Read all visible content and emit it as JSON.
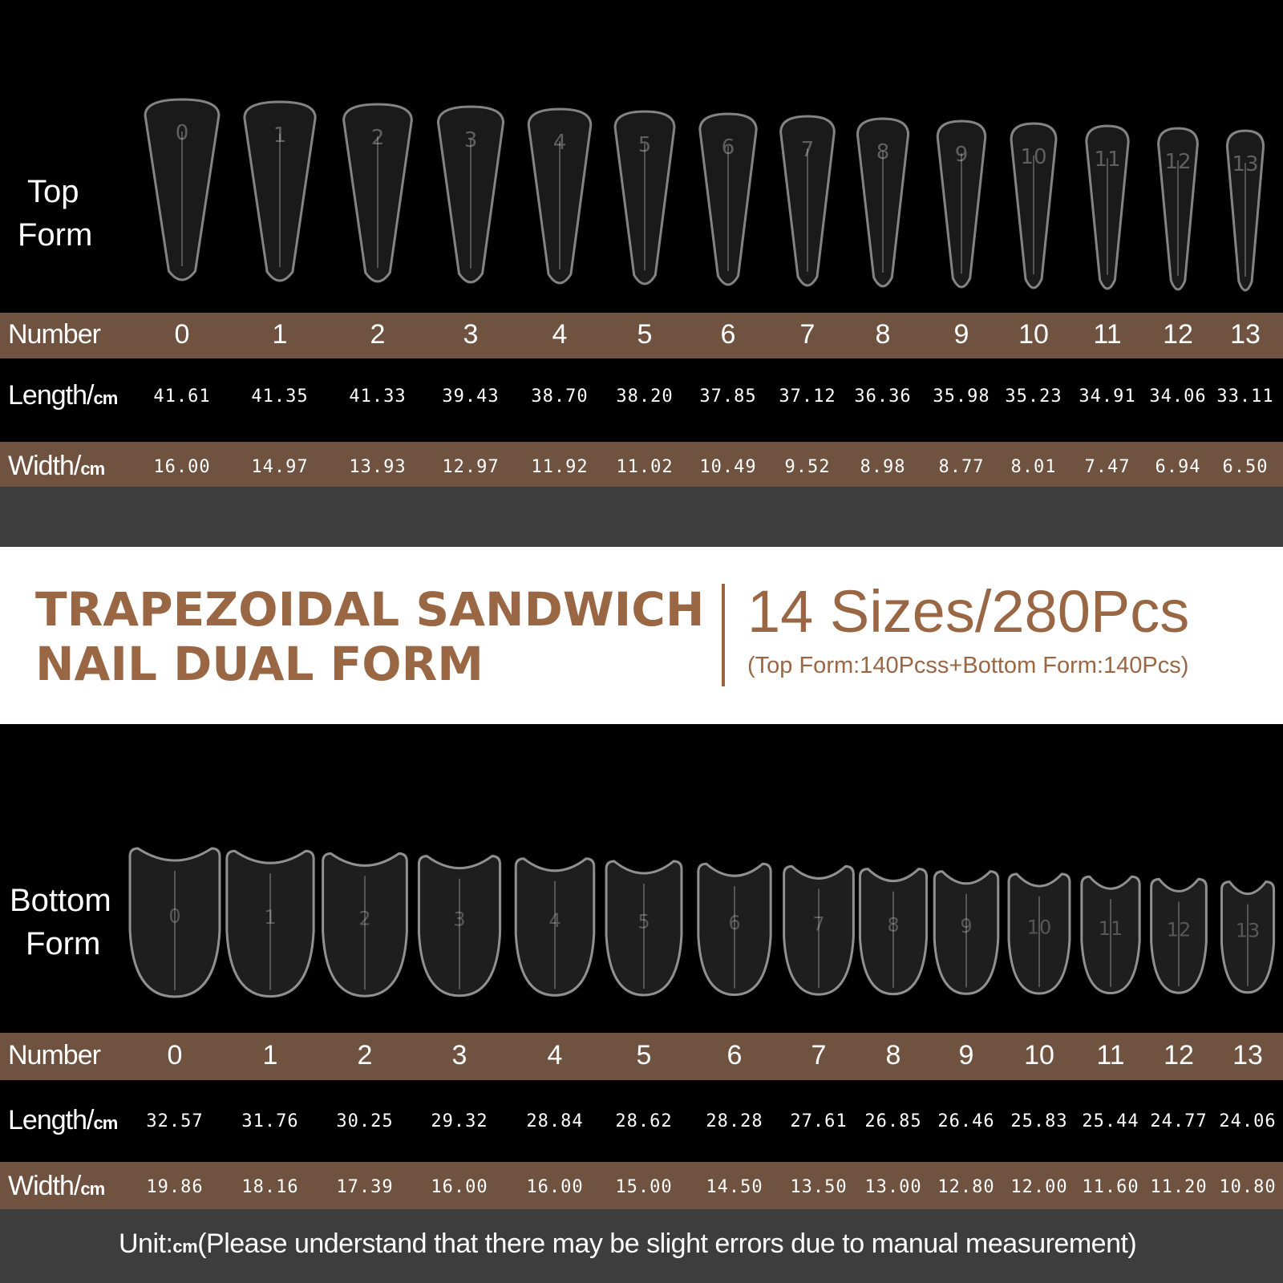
{
  "top_form": {
    "label_line1": "Top",
    "label_line2": "Form",
    "number_label": "Number",
    "length_label": "Length/",
    "length_unit": "cm",
    "width_label": "Width/",
    "width_unit": "cm",
    "numbers": [
      0,
      1,
      2,
      3,
      4,
      5,
      6,
      7,
      8,
      9,
      10,
      11,
      12,
      13
    ],
    "lengths": [
      "41.61",
      "41.35",
      "41.33",
      "39.43",
      "38.70",
      "38.20",
      "37.85",
      "37.12",
      "36.36",
      "35.98",
      "35.23",
      "34.91",
      "34.06",
      "33.11"
    ],
    "widths": [
      "16.00",
      "14.97",
      "13.93",
      "12.97",
      "11.92",
      "11.02",
      "10.49",
      "9.52",
      "8.98",
      "8.77",
      "8.01",
      "7.47",
      "6.94",
      "6.50"
    ]
  },
  "banner": {
    "title_line1": "TRAPEZOIDAL SANDWICH",
    "title_line2": "NAIL DUAL FORM",
    "sizes": "14 Sizes/280Pcs",
    "detail": "(Top Form:140Pcss+Bottom Form:140Pcs)"
  },
  "bottom_form": {
    "label_line1": "Bottom",
    "label_line2": "Form",
    "number_label": "Number",
    "length_label": "Length/",
    "length_unit": "cm",
    "width_label": "Width/",
    "width_unit": "cm",
    "numbers": [
      0,
      1,
      2,
      3,
      4,
      5,
      6,
      7,
      8,
      9,
      10,
      11,
      12,
      13
    ],
    "lengths": [
      "32.57",
      "31.76",
      "30.25",
      "29.32",
      "28.84",
      "28.62",
      "28.28",
      "27.61",
      "26.85",
      "26.46",
      "25.83",
      "25.44",
      "24.77",
      "24.06"
    ],
    "widths": [
      "19.86",
      "18.16",
      "17.39",
      "16.00",
      "16.00",
      "15.00",
      "14.50",
      "13.50",
      "13.00",
      "12.80",
      "12.00",
      "11.60",
      "11.20",
      "10.80"
    ]
  },
  "footer": {
    "unit_label": "Unit:",
    "unit": "cm",
    "note": "(Please understand that there may be slight errors due to manual measurement)"
  }
}
